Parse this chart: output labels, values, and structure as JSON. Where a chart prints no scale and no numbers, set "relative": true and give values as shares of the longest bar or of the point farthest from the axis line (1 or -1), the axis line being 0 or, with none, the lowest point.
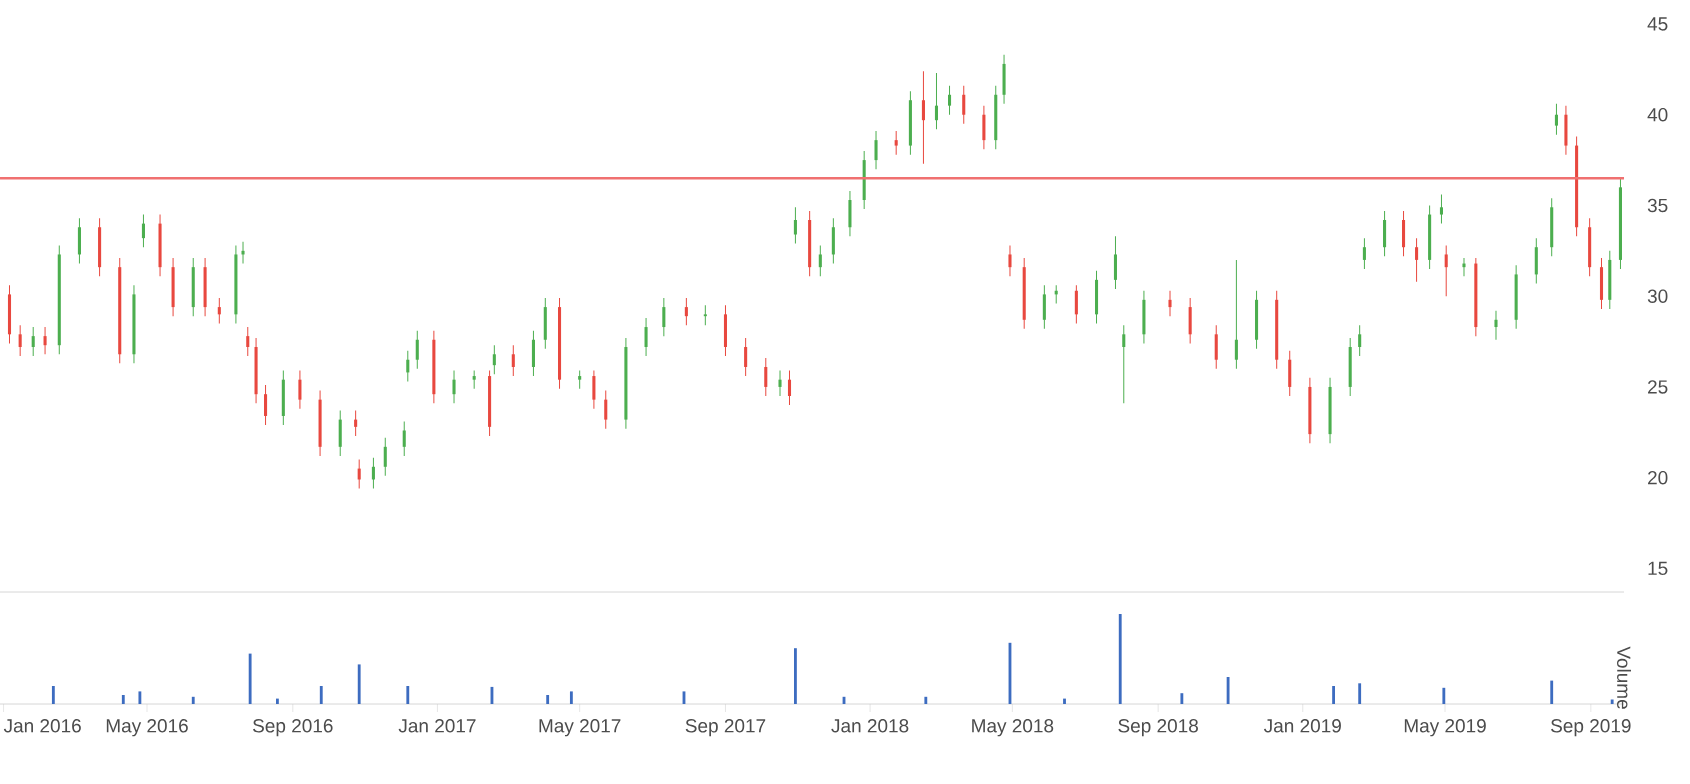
{
  "chart_data": [
    {
      "type": "candlestick",
      "colors": [
        "#e8483f",
        "#e8483f",
        "#4cae4f",
        "#e8483f",
        "#4cae4f",
        "#4cae4f",
        "#e8483f",
        "#e8483f",
        "#4cae4f",
        "#4cae4f",
        "#e8483f",
        "#e8483f",
        "#4cae4f",
        "#e8483f",
        "#e8483f",
        "#4cae4f",
        "#4cae4f",
        "#e8483f",
        "#e8483f",
        "#e8483f",
        "#4cae4f",
        "#e8483f",
        "#e8483f",
        "#4cae4f",
        "#e8483f",
        "#e8483f",
        "#4cae4f",
        "#4cae4f",
        "#4cae4f",
        "#4cae4f",
        "#4cae4f",
        "#e8483f",
        "#4cae4f",
        "#4cae4f",
        "#e8483f",
        "#4cae4f",
        "#e8483f",
        "#4cae4f",
        "#4cae4f",
        "#e8483f",
        "#4cae4f",
        "#e8483f",
        "#e8483f",
        "#4cae4f",
        "#4cae4f",
        "#4cae4f",
        "#e8483f",
        "#4cae4f",
        "#e8483f",
        "#e8483f",
        "#e8483f",
        "#4cae4f",
        "#e8483f",
        "#4cae4f",
        "#e8483f",
        "#4cae4f",
        "#4cae4f",
        "#4cae4f",
        "#4cae4f",
        "#4cae4f",
        "#e8483f",
        "#4cae4f",
        "#e8483f",
        "#4cae4f",
        "#4cae4f",
        "#e8483f",
        "#e8483f",
        "#4cae4f",
        "#4cae4f",
        "#e8483f",
        "#e8483f",
        "#4cae4f",
        "#4cae4f",
        "#e8483f",
        "#4cae4f",
        "#4cae4f",
        "#4cae4f",
        "#4cae4f",
        "#e8483f",
        "#e8483f",
        "#e8483f",
        "#4cae4f",
        "#4cae4f",
        "#e8483f",
        "#e8483f",
        "#e8483f",
        "#4cae4f",
        "#4cae4f",
        "#4cae4f",
        "#4cae4f",
        "#4cae4f",
        "#e8483f",
        "#e8483f",
        "#4cae4f",
        "#4cae4f",
        "#e8483f",
        "#4cae4f",
        "#e8483f",
        "#4cae4f",
        "#4cae4f",
        "#4cae4f",
        "#4cae4f",
        "#4cae4f",
        "#e8483f",
        "#e8483f",
        "#e8483f",
        "#e8483f",
        "#4cae4f",
        "#4cae4f"
      ],
      "xlim": [
        "2015-12-29",
        "2019-09-29"
      ],
      "ylim": [
        13.7,
        45
      ],
      "yticks": [
        15,
        20,
        25,
        30,
        35,
        40,
        45
      ],
      "tick_labels": "y",
      "ref_lines": [
        {
          "axis": "y",
          "value": 36.5,
          "color": "#f07070"
        }
      ],
      "x": [
        "2016-01-06",
        "2016-01-15",
        "2016-01-26",
        "2016-02-05",
        "2016-02-17",
        "2016-03-05",
        "2016-03-22",
        "2016-04-08",
        "2016-04-20",
        "2016-04-28",
        "2016-05-12",
        "2016-05-23",
        "2016-06-09",
        "2016-06-19",
        "2016-07-01",
        "2016-07-15",
        "2016-07-21",
        "2016-07-25",
        "2016-08-01",
        "2016-08-09",
        "2016-08-24",
        "2016-09-07",
        "2016-09-24",
        "2016-10-11",
        "2016-10-24",
        "2016-10-27",
        "2016-11-08",
        "2016-11-18",
        "2016-12-04",
        "2016-12-07",
        "2016-12-15",
        "2016-12-29",
        "2017-01-15",
        "2017-02-01",
        "2017-02-14",
        "2017-02-18",
        "2017-03-06",
        "2017-03-23",
        "2017-04-02",
        "2017-04-14",
        "2017-05-01",
        "2017-05-13",
        "2017-05-23",
        "2017-06-09",
        "2017-06-26",
        "2017-07-11",
        "2017-07-30",
        "2017-08-15",
        "2017-09-01",
        "2017-09-18",
        "2017-10-05",
        "2017-10-17",
        "2017-10-25",
        "2017-10-30",
        "2017-11-11",
        "2017-11-20",
        "2017-12-01",
        "2017-12-15",
        "2017-12-27",
        "2018-01-06",
        "2018-01-23",
        "2018-02-04",
        "2018-02-15",
        "2018-02-26",
        "2018-03-09",
        "2018-03-21",
        "2018-04-07",
        "2018-04-17",
        "2018-04-24",
        "2018-04-29",
        "2018-05-11",
        "2018-05-28",
        "2018-06-07",
        "2018-06-24",
        "2018-07-11",
        "2018-07-27",
        "2018-08-03",
        "2018-08-20",
        "2018-09-11",
        "2018-09-28",
        "2018-10-20",
        "2018-11-06",
        "2018-11-23",
        "2018-12-10",
        "2018-12-21",
        "2019-01-07",
        "2019-01-24",
        "2019-02-10",
        "2019-02-18",
        "2019-02-22",
        "2019-03-11",
        "2019-03-27",
        "2019-04-07",
        "2019-04-18",
        "2019-04-28",
        "2019-05-02",
        "2019-05-17",
        "2019-05-27",
        "2019-06-13",
        "2019-06-30",
        "2019-07-17",
        "2019-07-30",
        "2019-08-03",
        "2019-08-11",
        "2019-08-20",
        "2019-08-31",
        "2019-09-10",
        "2019-09-17",
        "2019-09-26"
      ],
      "ohlc": [
        [
          30.1,
          30.6,
          27.4,
          27.9
        ],
        [
          27.9,
          28.4,
          26.7,
          27.2
        ],
        [
          27.2,
          28.3,
          26.7,
          27.8
        ],
        [
          27.8,
          28.3,
          26.8,
          27.3
        ],
        [
          27.3,
          32.8,
          26.8,
          32.3
        ],
        [
          32.3,
          34.3,
          31.8,
          33.8
        ],
        [
          33.8,
          34.3,
          31.1,
          31.6
        ],
        [
          31.6,
          32.1,
          26.3,
          26.8
        ],
        [
          26.8,
          30.6,
          26.3,
          30.1
        ],
        [
          33.2,
          34.5,
          32.7,
          34
        ],
        [
          34,
          34.5,
          31.1,
          31.6
        ],
        [
          31.6,
          32.1,
          28.9,
          29.4
        ],
        [
          29.4,
          32.1,
          28.9,
          31.6
        ],
        [
          31.6,
          32.1,
          28.9,
          29.4
        ],
        [
          29.4,
          29.9,
          28.5,
          29
        ],
        [
          29,
          32.8,
          28.5,
          32.3
        ],
        [
          32.3,
          33,
          31.8,
          32.5
        ],
        [
          27.8,
          28.3,
          26.7,
          27.2
        ],
        [
          27.2,
          27.7,
          24.1,
          24.6
        ],
        [
          24.6,
          25.1,
          22.9,
          23.4
        ],
        [
          23.4,
          25.9,
          22.9,
          25.4
        ],
        [
          25.4,
          25.9,
          23.8,
          24.3
        ],
        [
          24.3,
          24.8,
          21.2,
          21.7
        ],
        [
          21.7,
          23.7,
          21.2,
          23.2
        ],
        [
          23.2,
          23.7,
          22.3,
          22.8
        ],
        [
          20.5,
          21,
          19.4,
          19.9
        ],
        [
          19.9,
          21.1,
          19.4,
          20.6
        ],
        [
          20.6,
          22.2,
          20.1,
          21.7
        ],
        [
          21.7,
          23.1,
          21.2,
          22.6
        ],
        [
          25.8,
          27,
          25.3,
          26.5
        ],
        [
          26.5,
          28.1,
          26,
          27.6
        ],
        [
          27.6,
          28.1,
          24.1,
          24.6
        ],
        [
          24.6,
          25.9,
          24.1,
          25.4
        ],
        [
          25.4,
          25.9,
          24.9,
          25.6
        ],
        [
          25.6,
          25.9,
          22.3,
          22.8
        ],
        [
          26.2,
          27.3,
          25.7,
          26.8
        ],
        [
          26.8,
          27.3,
          25.6,
          26.1
        ],
        [
          26.1,
          28.1,
          25.6,
          27.6
        ],
        [
          27.6,
          29.9,
          27.1,
          29.4
        ],
        [
          29.4,
          29.9,
          24.9,
          25.4
        ],
        [
          25.4,
          25.9,
          24.9,
          25.6
        ],
        [
          25.6,
          25.9,
          23.8,
          24.3
        ],
        [
          24.3,
          24.8,
          22.7,
          23.2
        ],
        [
          23.2,
          27.7,
          22.7,
          27.2
        ],
        [
          27.2,
          28.8,
          26.7,
          28.3
        ],
        [
          28.3,
          29.9,
          27.8,
          29.4
        ],
        [
          29.4,
          29.9,
          28.4,
          28.9
        ],
        [
          28.9,
          29.5,
          28.4,
          29
        ],
        [
          29,
          29.5,
          26.7,
          27.2
        ],
        [
          27.2,
          27.7,
          25.6,
          26.1
        ],
        [
          26.1,
          26.6,
          24.5,
          25
        ],
        [
          25,
          25.9,
          24.5,
          25.4
        ],
        [
          25.4,
          25.9,
          24,
          24.5
        ],
        [
          33.4,
          34.9,
          32.9,
          34.2
        ],
        [
          34.2,
          34.7,
          31.1,
          31.6
        ],
        [
          31.6,
          32.8,
          31.1,
          32.3
        ],
        [
          32.3,
          34.3,
          31.8,
          33.8
        ],
        [
          33.8,
          35.8,
          33.3,
          35.3
        ],
        [
          35.3,
          38,
          34.8,
          37.5
        ],
        [
          37.5,
          39.1,
          37,
          38.6
        ],
        [
          38.6,
          39.1,
          37.8,
          38.3
        ],
        [
          38.3,
          41.3,
          37.8,
          40.8
        ],
        [
          40.8,
          42.4,
          37.3,
          39.7
        ],
        [
          39.7,
          42.3,
          39.2,
          40.5
        ],
        [
          40.5,
          41.6,
          40,
          41.1
        ],
        [
          41.1,
          41.6,
          39.5,
          40
        ],
        [
          40,
          40.5,
          38.1,
          38.6
        ],
        [
          38.6,
          41.6,
          38.1,
          41.1
        ],
        [
          41.1,
          43.3,
          40.6,
          42.8
        ],
        [
          32.3,
          32.8,
          31.1,
          31.6
        ],
        [
          31.6,
          32.1,
          28.2,
          28.7
        ],
        [
          28.7,
          30.6,
          28.2,
          30.1
        ],
        [
          30.1,
          30.6,
          29.6,
          30.3
        ],
        [
          30.3,
          30.6,
          28.5,
          29
        ],
        [
          29,
          31.4,
          28.5,
          30.9
        ],
        [
          30.9,
          33.3,
          30.4,
          32.3
        ],
        [
          27.2,
          28.4,
          24.1,
          27.9
        ],
        [
          27.9,
          30.3,
          27.4,
          29.8
        ],
        [
          29.8,
          30.3,
          28.9,
          29.4
        ],
        [
          29.4,
          29.9,
          27.4,
          27.9
        ],
        [
          27.9,
          28.4,
          26,
          26.5
        ],
        [
          26.5,
          32,
          26,
          27.6
        ],
        [
          27.6,
          30.3,
          27.1,
          29.8
        ],
        [
          29.8,
          30.3,
          26,
          26.5
        ],
        [
          26.5,
          27,
          24.5,
          25
        ],
        [
          25,
          25.5,
          21.9,
          22.4
        ],
        [
          22.4,
          25.5,
          21.9,
          25
        ],
        [
          25,
          27.7,
          24.5,
          27.2
        ],
        [
          27.2,
          28.4,
          26.7,
          27.9
        ],
        [
          32,
          33.2,
          31.5,
          32.7
        ],
        [
          32.7,
          34.7,
          32.2,
          34.2
        ],
        [
          34.2,
          34.7,
          32.2,
          32.7
        ],
        [
          32.7,
          33.2,
          30.8,
          32
        ],
        [
          32,
          35,
          31.5,
          34.5
        ],
        [
          34.5,
          35.6,
          34,
          34.9
        ],
        [
          32.3,
          32.8,
          30,
          31.6
        ],
        [
          31.6,
          32.1,
          31.1,
          31.8
        ],
        [
          31.8,
          32.1,
          27.8,
          28.3
        ],
        [
          28.3,
          29.2,
          27.6,
          28.7
        ],
        [
          28.7,
          31.7,
          28.2,
          31.2
        ],
        [
          31.2,
          33.2,
          30.7,
          32.7
        ],
        [
          32.7,
          35.4,
          32.2,
          34.9
        ],
        [
          39.4,
          40.6,
          38.9,
          40
        ],
        [
          40,
          40.5,
          37.8,
          38.3
        ],
        [
          38.3,
          38.8,
          33.3,
          33.8
        ],
        [
          33.8,
          34.3,
          31.1,
          31.6
        ],
        [
          31.6,
          32.1,
          29.3,
          29.8
        ],
        [
          29.8,
          32.5,
          29.3,
          32
        ],
        [
          32,
          36.5,
          31.5,
          36
        ]
      ]
    },
    {
      "type": "bar",
      "relative": true,
      "color": "#3d6cc0",
      "ylabel": "Volume",
      "xlim": [
        "2015-12-29",
        "2019-09-29"
      ],
      "tick_labels": "x",
      "xticks": [
        {
          "value": "2016-01-01",
          "label": "Jan 2016"
        },
        {
          "value": "2016-05-01",
          "label": "May 2016"
        },
        {
          "value": "2016-09-01",
          "label": "Sep 2016"
        },
        {
          "value": "2017-01-01",
          "label": "Jan 2017"
        },
        {
          "value": "2017-05-01",
          "label": "May 2017"
        },
        {
          "value": "2017-09-01",
          "label": "Sep 2017"
        },
        {
          "value": "2018-01-01",
          "label": "Jan 2018"
        },
        {
          "value": "2018-05-01",
          "label": "May 2018"
        },
        {
          "value": "2018-09-01",
          "label": "Sep 2018"
        },
        {
          "value": "2019-01-01",
          "label": "Jan 2019"
        },
        {
          "value": "2019-05-01",
          "label": "May 2019"
        },
        {
          "value": "2019-09-01",
          "label": "Sep 2019"
        }
      ],
      "x": [
        "2016-02-12",
        "2016-04-11",
        "2016-04-25",
        "2016-06-09",
        "2016-07-27",
        "2016-08-19",
        "2016-09-25",
        "2016-10-27",
        "2016-12-07",
        "2017-02-16",
        "2017-04-04",
        "2017-04-24",
        "2017-07-28",
        "2017-10-30",
        "2017-12-10",
        "2018-02-17",
        "2018-04-29",
        "2018-06-14",
        "2018-07-31",
        "2018-09-21",
        "2018-10-30",
        "2019-01-27",
        "2019-02-18",
        "2019-04-30",
        "2019-07-30",
        "2019-09-19"
      ],
      "values": [
        0.2,
        0.1,
        0.14,
        0.08,
        0.56,
        0.06,
        0.2,
        0.44,
        0.2,
        0.19,
        0.1,
        0.14,
        0.14,
        0.62,
        0.08,
        0.08,
        0.68,
        0.06,
        1.0,
        0.12,
        0.3,
        0.2,
        0.23,
        0.18,
        0.26,
        0.05
      ]
    }
  ]
}
